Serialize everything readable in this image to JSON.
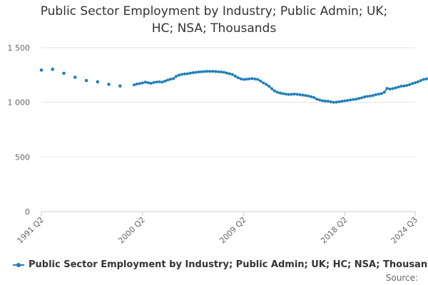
{
  "chart_data": {
    "type": "line",
    "title_line1": "Public Sector Employment by Industry; Public Admin; UK;",
    "title_line2": "HC; NSA; Thousands",
    "ylim": [
      0,
      1500
    ],
    "y_ticks": [
      0,
      500,
      1000,
      1500
    ],
    "y_tick_labels": [
      "0",
      "500",
      "1 000",
      "1 500"
    ],
    "x_ticks": [
      {
        "label": "1991 Q2",
        "t": 1991.25
      },
      {
        "label": "2000 Q2",
        "t": 2000.25
      },
      {
        "label": "2009 Q2",
        "t": 2009.25
      },
      {
        "label": "2018 Q2",
        "t": 2018.25
      },
      {
        "label": "2024 Q3",
        "t": 2024.5
      }
    ],
    "x_range": [
      1991.25,
      2024.5
    ],
    "color": "#1f7fb8",
    "series": [
      {
        "name": "Public Sector Employment by Industry; Public Admin; UK; HC; NSA; Thousands",
        "start": 1999.5,
        "annual_points": [
          {
            "t": 1991.25,
            "v": 1295
          },
          {
            "t": 1992.25,
            "v": 1303
          },
          {
            "t": 1993.25,
            "v": 1266
          },
          {
            "t": 1994.25,
            "v": 1230
          },
          {
            "t": 1995.25,
            "v": 1200
          },
          {
            "t": 1996.25,
            "v": 1188
          },
          {
            "t": 1997.25,
            "v": 1165
          },
          {
            "t": 1998.25,
            "v": 1150
          }
        ],
        "quarterly_values": [
          1160,
          1168,
          1172,
          1178,
          1185,
          1180,
          1175,
          1182,
          1186,
          1188,
          1185,
          1195,
          1205,
          1212,
          1218,
          1238,
          1250,
          1256,
          1260,
          1262,
          1268,
          1272,
          1275,
          1278,
          1280,
          1282,
          1284,
          1283,
          1284,
          1282,
          1280,
          1278,
          1275,
          1268,
          1262,
          1255,
          1240,
          1225,
          1215,
          1210,
          1212,
          1215,
          1218,
          1214,
          1210,
          1195,
          1178,
          1165,
          1148,
          1125,
          1105,
          1092,
          1085,
          1080,
          1075,
          1072,
          1074,
          1076,
          1074,
          1070,
          1066,
          1063,
          1058,
          1052,
          1044,
          1030,
          1022,
          1015,
          1012,
          1010,
          1005,
          1000,
          1002,
          1006,
          1010,
          1014,
          1018,
          1022,
          1026,
          1030,
          1036,
          1042,
          1050,
          1055,
          1058,
          1063,
          1070,
          1075,
          1080,
          1092,
          1128,
          1122,
          1126,
          1132,
          1140,
          1148,
          1150,
          1155,
          1162,
          1172,
          1180,
          1188,
          1200,
          1210,
          1215,
          1218,
          1216
        ]
      }
    ],
    "legend": "Public Sector Employment by Industry; Public Admin; UK; HC; NSA; Thousands",
    "source_label": "Source:"
  }
}
